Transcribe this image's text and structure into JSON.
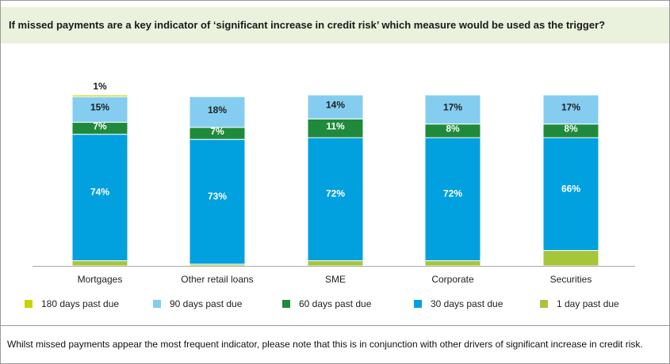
{
  "chart_data": {
    "type": "stacked_bar",
    "title": "If missed payments are a key indicator of ‘significant increase in credit risk’ which measure would be used as the trigger?",
    "categories": [
      "Mortgages",
      "Other retail loans",
      "SME",
      "Corporate",
      "Securities"
    ],
    "ylim": [
      0,
      100
    ],
    "series": [
      {
        "name": "180 days past due",
        "color": "#c8d400",
        "values": [
          1,
          0,
          0,
          0,
          0
        ],
        "value_labels": [
          "1%",
          null,
          null,
          null,
          null
        ]
      },
      {
        "name": "90 days past due",
        "color": "#84cdf0",
        "values": [
          15,
          18,
          14,
          17,
          17
        ],
        "value_labels": [
          "15%",
          "18%",
          "14%",
          "17%",
          "17%"
        ]
      },
      {
        "name": "60 days past due",
        "color": "#1f8a3b",
        "values": [
          7,
          7,
          11,
          8,
          8
        ],
        "value_labels": [
          "7%",
          "7%",
          "11%",
          "8%",
          "8%"
        ]
      },
      {
        "name": "30 days past due",
        "color": "#00a1de",
        "values": [
          74,
          73,
          72,
          72,
          66
        ],
        "value_labels": [
          "74%",
          "73%",
          "72%",
          "72%",
          "66%"
        ]
      },
      {
        "name": "1 day past due",
        "color": "#a7c539",
        "values": [
          3,
          1,
          3,
          3,
          9
        ],
        "value_labels": [
          null,
          null,
          null,
          null,
          null
        ]
      }
    ],
    "footnote": "Whilst missed payments appear the most frequent indicator, please note that this is in conjunction with other drivers of significant increase in credit risk."
  }
}
